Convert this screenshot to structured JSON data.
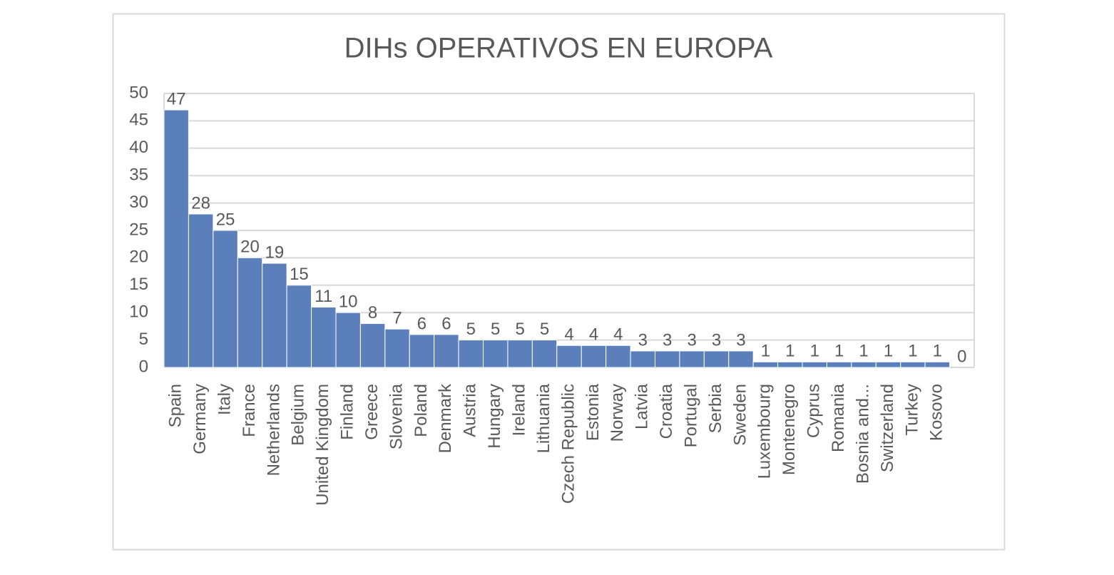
{
  "chart_data": {
    "type": "bar",
    "title": "DIHs OPERATIVOS EN EUROPA",
    "categories": [
      "Spain",
      "Germany",
      "Italy",
      "France",
      "Netherlands",
      "Belgium",
      "United Kingdom",
      "Finland",
      "Greece",
      "Slovenia",
      "Poland",
      "Denmark",
      "Austria",
      "Hungary",
      "Ireland",
      "Lithuania",
      "Czech Republic",
      "Estonia",
      "Norway",
      "Latvia",
      "Croatia",
      "Portugal",
      "Serbia",
      "Sweden",
      "Luxembourg",
      "Montenegro",
      "Cyprus",
      "Romania",
      "Bosnia and...",
      "Switzerland",
      "Turkey",
      "Kosovo",
      null
    ],
    "values": [
      47,
      28,
      25,
      20,
      19,
      15,
      11,
      10,
      8,
      7,
      6,
      6,
      5,
      5,
      5,
      5,
      4,
      4,
      4,
      3,
      3,
      3,
      3,
      3,
      1,
      1,
      1,
      1,
      1,
      1,
      1,
      1,
      0
    ],
    "color": "#5b7fba",
    "ylim": [
      0,
      50
    ],
    "yticks": [
      0,
      5,
      10,
      15,
      20,
      25,
      30,
      35,
      40,
      45,
      50
    ],
    "grid": true
  }
}
